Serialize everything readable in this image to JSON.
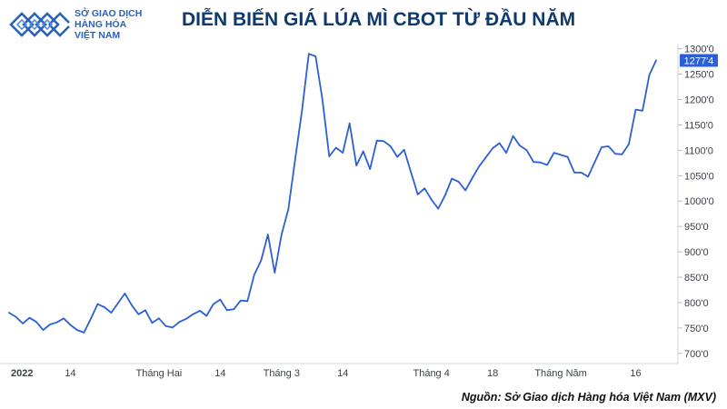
{
  "logo": {
    "lines": [
      "SỞ GIAO DỊCH",
      "HÀNG HÓA",
      "VIỆT NAM"
    ],
    "color": "#2a62b8"
  },
  "header": {
    "title": "DIỄN BIẾN GIÁ LÚA MÌ CBOT TỪ ĐẦU NĂM"
  },
  "footer": {
    "source": "Nguồn: Sở Giao dịch Hàng hóa Việt Nam (MXV)"
  },
  "chart_data": {
    "type": "line",
    "title": "DIỄN BIẾN GIÁ LÚA MÌ CBOT TỪ ĐẦU NĂM",
    "xlabel": "",
    "ylabel": "",
    "ylim": [
      680,
      1310
    ],
    "y_ticks": [
      700,
      750,
      800,
      850,
      900,
      950,
      1000,
      1050,
      1100,
      1150,
      1200,
      1250,
      1300
    ],
    "y_tick_labels": [
      "700'0",
      "750'0",
      "800'0",
      "850'0",
      "900'0",
      "950'0",
      "1000'0",
      "1050'0",
      "1100'0",
      "1150'0",
      "1200'0",
      "1250'0",
      "1300'0"
    ],
    "y_axis_side": "right",
    "x_ticks": [
      {
        "index": 0,
        "label": "2022",
        "bold": true
      },
      {
        "index": 9,
        "label": "14"
      },
      {
        "index": 22,
        "label": "Tháng Hai"
      },
      {
        "index": 31,
        "label": "14"
      },
      {
        "index": 40,
        "label": "Tháng 3"
      },
      {
        "index": 49,
        "label": "14"
      },
      {
        "index": 62,
        "label": "Tháng 4"
      },
      {
        "index": 71,
        "label": "18"
      },
      {
        "index": 81,
        "label": "Tháng Năm"
      },
      {
        "index": 92,
        "label": "16"
      }
    ],
    "last_value_label": "1277'4",
    "line_color": "#2c5fd6",
    "grid": false,
    "series": [
      {
        "values": [
          780,
          772,
          759,
          770,
          762,
          746,
          757,
          761,
          769,
          756,
          746,
          741,
          768,
          797,
          791,
          780,
          799,
          818,
          795,
          777,
          785,
          760,
          769,
          754,
          751,
          762,
          768,
          777,
          784,
          774,
          797,
          806,
          785,
          787,
          804,
          803,
          855,
          883,
          934,
          859,
          934,
          984,
          1082,
          1178,
          1290,
          1285,
          1200,
          1088,
          1105,
          1095,
          1153,
          1070,
          1098,
          1063,
          1119,
          1118,
          1108,
          1087,
          1101,
          1057,
          1013,
          1025,
          1003,
          985,
          1011,
          1044,
          1038,
          1021,
          1045,
          1068,
          1086,
          1104,
          1114,
          1095,
          1128,
          1109,
          1100,
          1077,
          1076,
          1071,
          1095,
          1091,
          1087,
          1056,
          1056,
          1048,
          1077,
          1106,
          1108,
          1093,
          1092,
          1112,
          1180,
          1178,
          1248,
          1277
        ]
      }
    ]
  }
}
